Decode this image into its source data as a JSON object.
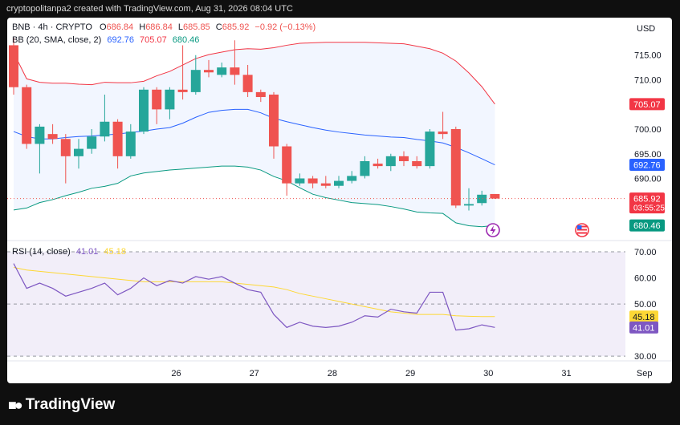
{
  "header": {
    "attribution": "cryptopolitanpa2 created with TradingView.com, Aug 31, 2026 08:04 UTC"
  },
  "footer": {
    "brand": "TradingView"
  },
  "colors": {
    "up": "#26a69a",
    "down": "#ef5350",
    "bb_upper": "#f23645",
    "bb_basis": "#2962ff",
    "bb_lower": "#089981",
    "rsi": "#7e57c2",
    "rsi_ma": "#fdd835"
  },
  "chart_data": [
    {
      "type": "candlestick",
      "symbol": "BNB",
      "timeframe": "4h",
      "exchange": "CRYPTO",
      "ohlc_legend": {
        "o_label": "O",
        "o": "686.84",
        "h_label": "H",
        "h": "686.84",
        "l_label": "L",
        "l": "685.85",
        "c_label": "C",
        "c": "685.92",
        "change": "−0.92",
        "change_pct": "(−0.13%)"
      },
      "indicator_legend": {
        "name": "BB (20, SMA, close, 2)",
        "basis": "692.76",
        "upper": "705.07",
        "lower": "680.46"
      },
      "currency": "USD",
      "y_ticks": [
        "715.00",
        "710.00",
        "705.00",
        "700.00",
        "695.00",
        "690.00"
      ],
      "ylim": [
        677.4,
        722.6
      ],
      "x_ticks": [
        {
          "label": "26",
          "t": 12.5
        },
        {
          "label": "27",
          "t": 18.5
        },
        {
          "label": "28",
          "t": 24.5
        },
        {
          "label": "29",
          "t": 30.5
        },
        {
          "label": "30",
          "t": 36.5
        },
        {
          "label": "31",
          "t": 42.5
        },
        {
          "label": "Sep",
          "t": 48.5
        }
      ],
      "price_labels": [
        {
          "text": "705.07",
          "value": 705.07,
          "bg": "#f23645",
          "fg": "#ffffff"
        },
        {
          "text": "692.76",
          "value": 692.76,
          "bg": "#2962ff",
          "fg": "#ffffff"
        },
        {
          "text": "685.92",
          "value": 685.92,
          "bg": "#f23645",
          "fg": "#ffffff",
          "countdown": "03:55:25"
        },
        {
          "text": "680.46",
          "value": 680.46,
          "bg": "#089981",
          "fg": "#ffffff"
        }
      ],
      "last_price": 685.92,
      "candles": [
        {
          "o": 717.0,
          "h": 718.5,
          "l": 707.0,
          "c": 708.5
        },
        {
          "o": 708.5,
          "h": 709.0,
          "l": 696.0,
          "c": 697.0
        },
        {
          "o": 697.0,
          "h": 701.0,
          "l": 691.0,
          "c": 700.5
        },
        {
          "o": 699.0,
          "h": 701.0,
          "l": 697.0,
          "c": 698.0
        },
        {
          "o": 698.0,
          "h": 699.0,
          "l": 689.0,
          "c": 694.5
        },
        {
          "o": 694.5,
          "h": 698.0,
          "l": 692.0,
          "c": 696.0
        },
        {
          "o": 696.0,
          "h": 700.0,
          "l": 695.0,
          "c": 698.5
        },
        {
          "o": 698.5,
          "h": 707.0,
          "l": 697.5,
          "c": 701.5
        },
        {
          "o": 701.5,
          "h": 702.0,
          "l": 692.0,
          "c": 694.5
        },
        {
          "o": 694.5,
          "h": 701.0,
          "l": 694.0,
          "c": 699.5
        },
        {
          "o": 699.5,
          "h": 708.5,
          "l": 699.0,
          "c": 708.0
        },
        {
          "o": 708.0,
          "h": 708.5,
          "l": 701.0,
          "c": 704.0
        },
        {
          "o": 704.0,
          "h": 708.5,
          "l": 702.0,
          "c": 708.0
        },
        {
          "o": 708.0,
          "h": 717.0,
          "l": 706.0,
          "c": 707.5
        },
        {
          "o": 707.5,
          "h": 715.0,
          "l": 707.0,
          "c": 712.0
        },
        {
          "o": 712.0,
          "h": 714.0,
          "l": 710.5,
          "c": 711.5
        },
        {
          "o": 711.0,
          "h": 713.5,
          "l": 710.5,
          "c": 712.5
        },
        {
          "o": 712.5,
          "h": 718.0,
          "l": 709.0,
          "c": 711.0
        },
        {
          "o": 711.0,
          "h": 713.0,
          "l": 706.5,
          "c": 707.5
        },
        {
          "o": 707.5,
          "h": 708.0,
          "l": 705.5,
          "c": 706.5
        },
        {
          "o": 707.0,
          "h": 707.5,
          "l": 694.0,
          "c": 696.5
        },
        {
          "o": 696.5,
          "h": 697.0,
          "l": 686.5,
          "c": 689.0
        },
        {
          "o": 689.0,
          "h": 691.0,
          "l": 688.5,
          "c": 690.0
        },
        {
          "o": 690.0,
          "h": 690.5,
          "l": 688.0,
          "c": 689.0
        },
        {
          "o": 689.0,
          "h": 690.5,
          "l": 688.0,
          "c": 688.5
        },
        {
          "o": 688.5,
          "h": 690.5,
          "l": 688.0,
          "c": 689.5
        },
        {
          "o": 689.5,
          "h": 691.5,
          "l": 689.0,
          "c": 690.5
        },
        {
          "o": 690.5,
          "h": 694.5,
          "l": 690.0,
          "c": 693.5
        },
        {
          "o": 693.0,
          "h": 694.0,
          "l": 692.0,
          "c": 692.5
        },
        {
          "o": 692.5,
          "h": 695.0,
          "l": 691.5,
          "c": 694.5
        },
        {
          "o": 694.5,
          "h": 695.5,
          "l": 692.5,
          "c": 693.5
        },
        {
          "o": 693.5,
          "h": 694.5,
          "l": 692.0,
          "c": 692.5
        },
        {
          "o": 692.5,
          "h": 700.0,
          "l": 692.0,
          "c": 699.5
        },
        {
          "o": 699.5,
          "h": 703.5,
          "l": 698.0,
          "c": 699.0
        },
        {
          "o": 700.0,
          "h": 700.5,
          "l": 684.0,
          "c": 684.5
        },
        {
          "o": 684.5,
          "h": 688.0,
          "l": 683.5,
          "c": 684.8
        },
        {
          "o": 685.0,
          "h": 687.5,
          "l": 684.5,
          "c": 686.7
        },
        {
          "o": 686.84,
          "h": 686.84,
          "l": 685.85,
          "c": 685.92
        }
      ],
      "bollinger": {
        "upper": [
          715.5,
          710.2,
          709.5,
          709.3,
          709.3,
          709.1,
          709.0,
          709.5,
          709.4,
          709.4,
          709.7,
          710.8,
          711.7,
          713.0,
          714.3,
          715.1,
          715.6,
          716.1,
          716.3,
          716.2,
          716.5,
          717.0,
          717.4,
          717.5,
          717.6,
          717.6,
          717.6,
          717.6,
          717.5,
          717.4,
          717.3,
          716.8,
          716.3,
          715.4,
          713.8,
          711.4,
          708.6,
          705.07
        ],
        "basis": [
          699.5,
          698.5,
          698.0,
          698.0,
          698.3,
          698.5,
          698.6,
          698.8,
          699.0,
          699.3,
          699.6,
          700.0,
          700.3,
          701.2,
          702.4,
          703.4,
          703.8,
          704.0,
          704.0,
          703.3,
          702.2,
          701.5,
          700.9,
          700.3,
          699.8,
          699.4,
          699.1,
          698.8,
          698.6,
          698.4,
          698.3,
          697.9,
          697.6,
          697.2,
          696.3,
          695.2,
          694.0,
          692.76
        ],
        "lower": [
          683.6,
          684.0,
          685.1,
          685.7,
          686.5,
          687.2,
          688.0,
          688.4,
          689.0,
          690.5,
          691.1,
          691.4,
          691.7,
          691.9,
          692.1,
          692.3,
          692.5,
          692.5,
          692.3,
          691.7,
          690.4,
          689.5,
          688.1,
          686.8,
          686.1,
          685.6,
          685.1,
          684.9,
          684.7,
          684.3,
          683.8,
          683.2,
          683.0,
          682.9,
          681.0,
          680.4,
          680.2,
          680.46
        ]
      }
    },
    {
      "type": "line",
      "name": "RSI (14, close)",
      "rsi_value": "41.01",
      "ma_value": "45.18",
      "y_ticks": [
        "70.00",
        "60.00",
        "50.00",
        "40.00",
        "30.00"
      ],
      "ylim": [
        28.2,
        74.0
      ],
      "band": [
        30,
        70
      ],
      "midline": 50,
      "price_labels": [
        {
          "text": "45.18",
          "value": 45.18,
          "bg": "#fdd835",
          "fg": "#131722"
        },
        {
          "text": "41.01",
          "value": 41.01,
          "bg": "#7e57c2",
          "fg": "#ffffff"
        }
      ],
      "series": [
        {
          "name": "RSI",
          "values": [
            65.5,
            56.0,
            58.0,
            56.0,
            53.0,
            54.5,
            56.0,
            58.0,
            53.5,
            56.0,
            60.0,
            57.0,
            59.0,
            58.0,
            60.5,
            59.5,
            60.5,
            58.0,
            55.5,
            54.5,
            46.0,
            41.0,
            43.0,
            41.5,
            41.0,
            41.5,
            43.0,
            45.5,
            45.0,
            48.0,
            47.0,
            46.5,
            54.5,
            54.5,
            40.0,
            40.5,
            42.0,
            41.01
          ]
        },
        {
          "name": "RSI MA",
          "values": [
            64.0,
            63.0,
            62.5,
            62.0,
            61.5,
            61.0,
            60.5,
            60.0,
            59.5,
            59.0,
            58.5,
            58.5,
            58.5,
            58.5,
            58.5,
            58.5,
            58.5,
            58.0,
            57.5,
            57.0,
            56.5,
            55.5,
            54.0,
            53.0,
            52.0,
            51.0,
            50.0,
            49.0,
            48.0,
            47.0,
            46.5,
            46.0,
            46.0,
            46.0,
            45.5,
            45.3,
            45.2,
            45.18
          ]
        }
      ]
    }
  ]
}
